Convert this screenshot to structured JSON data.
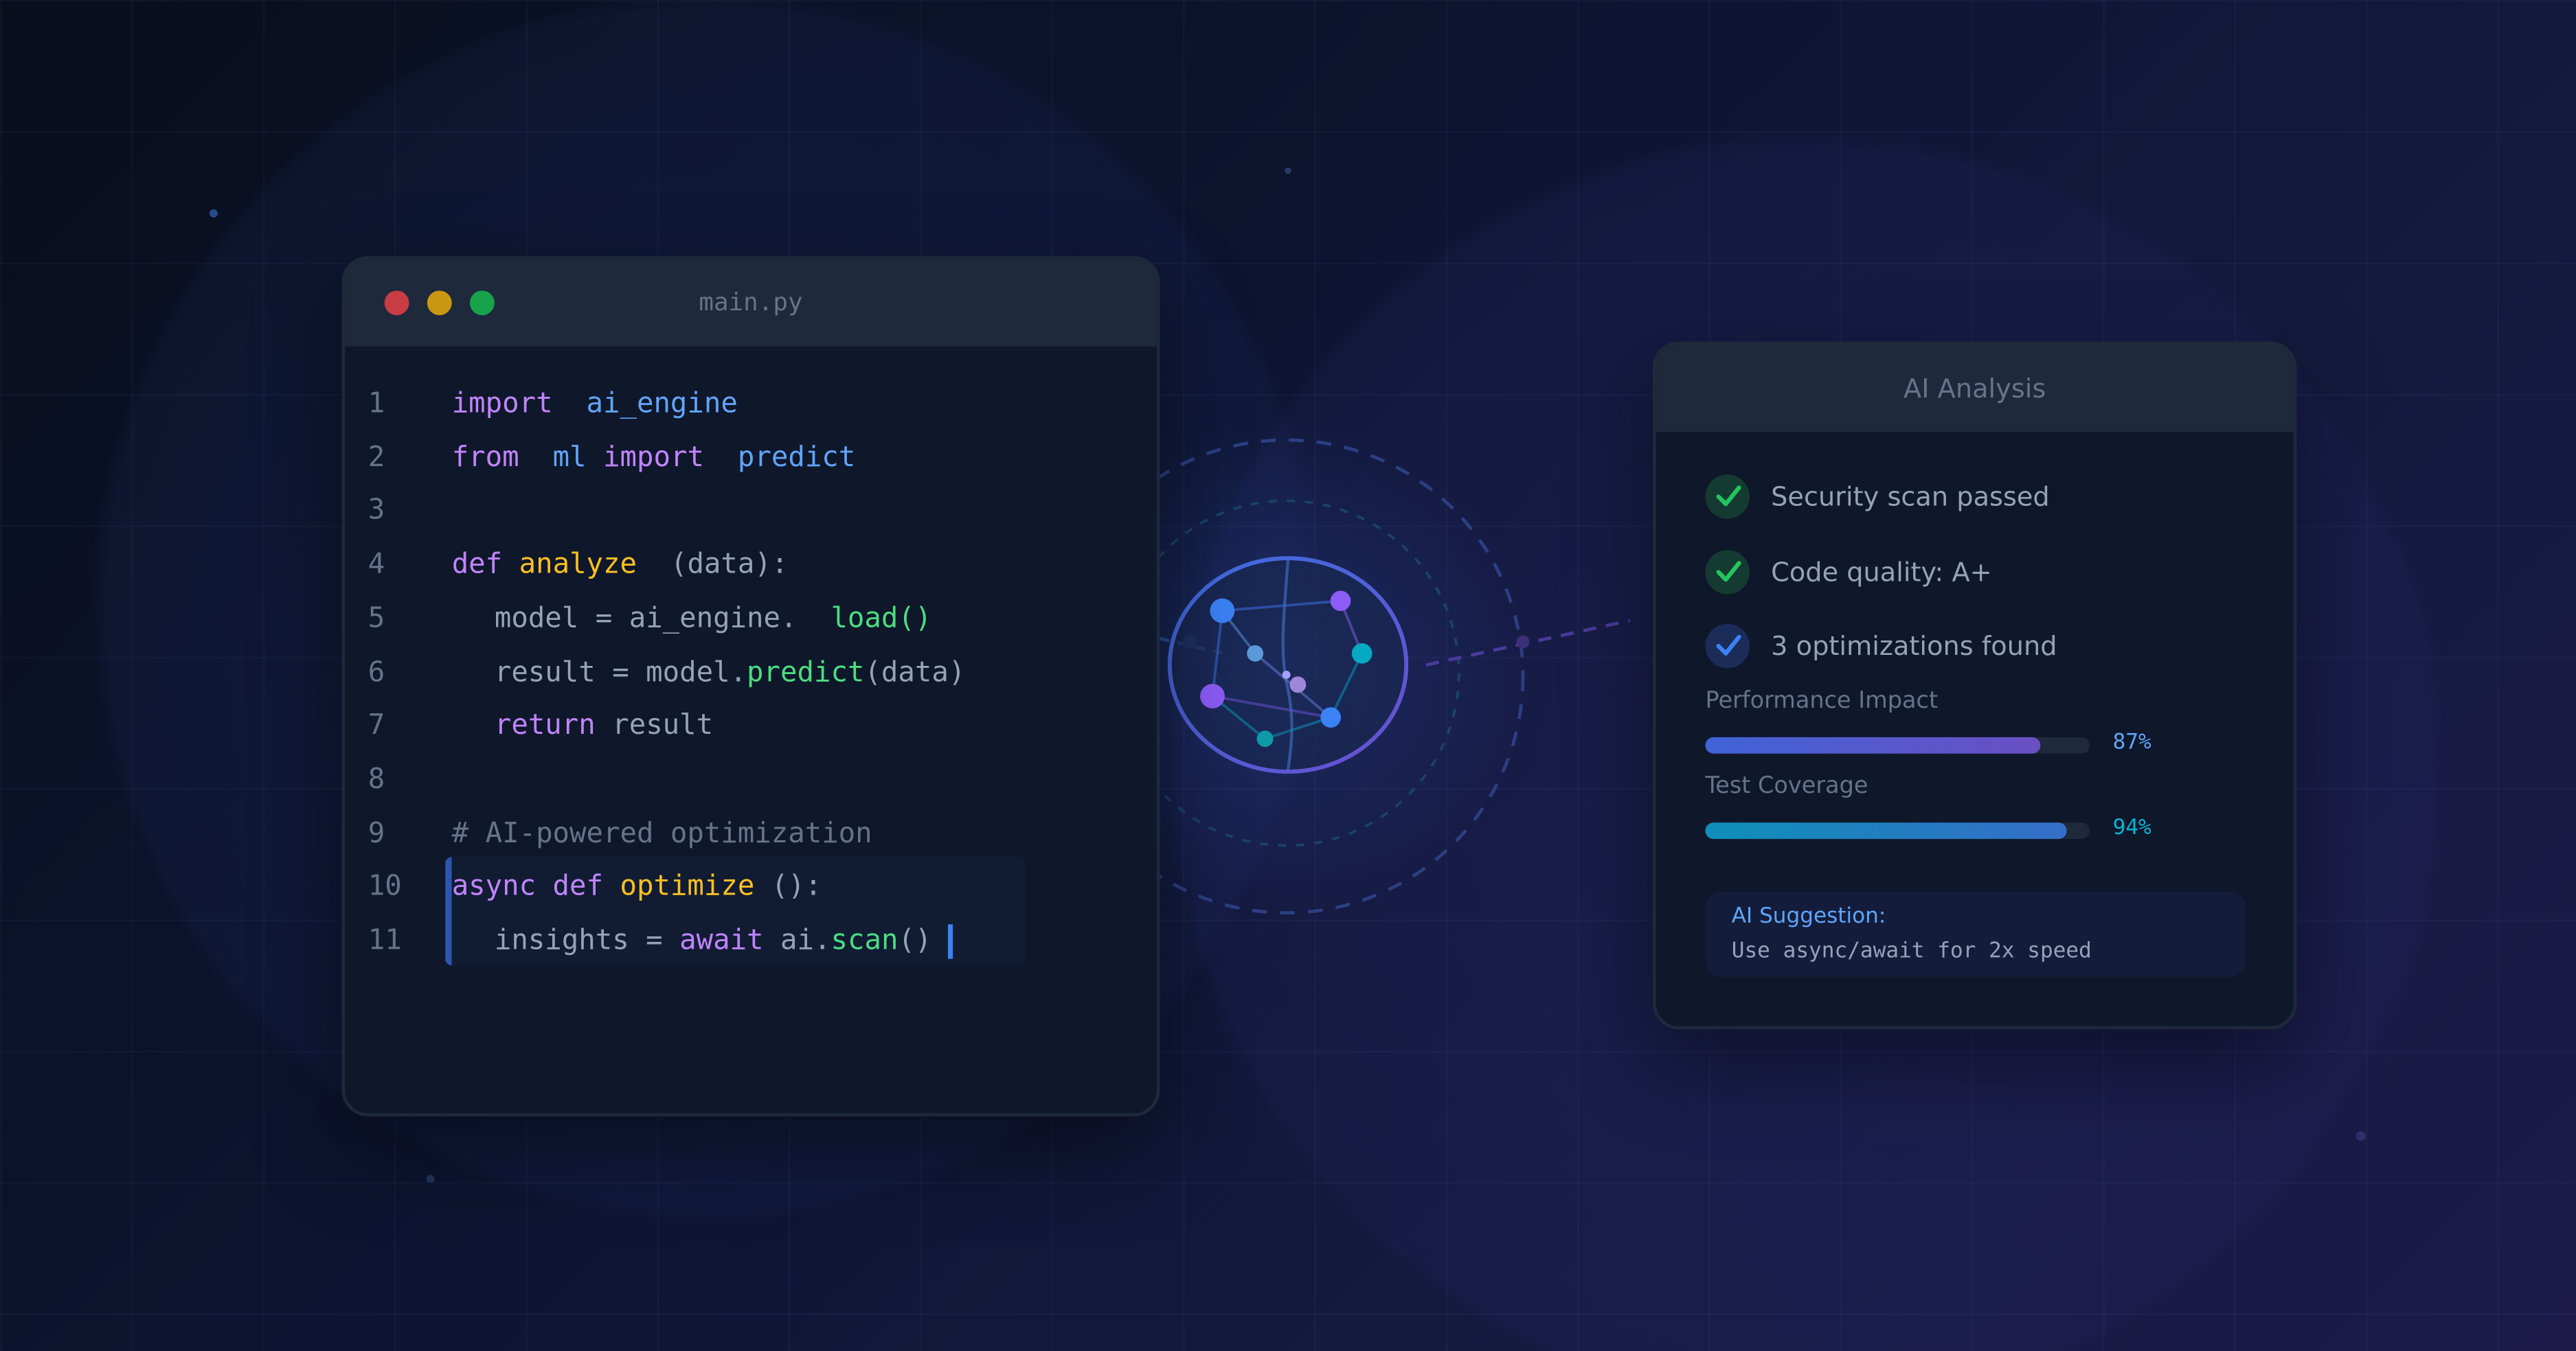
{
  "editor": {
    "title": "main.py",
    "window_buttons": [
      {
        "name": "close",
        "color": "#c93c44"
      },
      {
        "name": "minimize",
        "color": "#c99712"
      },
      {
        "name": "maximize",
        "color": "#18a34a"
      }
    ],
    "lines": [
      {
        "n": "1",
        "indent": false,
        "tokens": [
          [
            "import",
            "kw"
          ],
          [
            "  ai_engine",
            "mod"
          ]
        ]
      },
      {
        "n": "2",
        "indent": false,
        "tokens": [
          [
            "from",
            "kw"
          ],
          [
            "  ml ",
            "mod"
          ],
          [
            "import",
            "kw"
          ],
          [
            "  predict",
            "mod"
          ]
        ]
      },
      {
        "n": "3",
        "indent": false,
        "tokens": []
      },
      {
        "n": "4",
        "indent": false,
        "tokens": [
          [
            "def ",
            "kw"
          ],
          [
            "analyze",
            "fn"
          ],
          [
            "  (data):",
            "txt"
          ]
        ]
      },
      {
        "n": "5",
        "indent": true,
        "tokens": [
          [
            "model = ai_engine.  ",
            "txt"
          ],
          [
            "load()",
            "call"
          ]
        ]
      },
      {
        "n": "6",
        "indent": true,
        "tokens": [
          [
            "result = model.",
            "txt"
          ],
          [
            "predict",
            "call"
          ],
          [
            "(data)",
            "txt"
          ]
        ]
      },
      {
        "n": "7",
        "indent": true,
        "tokens": [
          [
            "return ",
            "kw"
          ],
          [
            "result",
            "txt"
          ]
        ]
      },
      {
        "n": "8",
        "indent": false,
        "tokens": []
      },
      {
        "n": "9",
        "indent": false,
        "tokens": [
          [
            "# AI-powered optimization",
            "cm"
          ]
        ]
      },
      {
        "n": "10",
        "indent": false,
        "tokens": [
          [
            "async def ",
            "kw"
          ],
          [
            "optimize",
            "fn"
          ],
          [
            " ():",
            "txt"
          ]
        ]
      },
      {
        "n": "11",
        "indent": true,
        "cursor": true,
        "tokens": [
          [
            "insights = ",
            "txt"
          ],
          [
            "await ",
            "kw"
          ],
          [
            "ai.",
            "txt"
          ],
          [
            "scan",
            "call"
          ],
          [
            "()",
            "txt"
          ]
        ]
      }
    ]
  },
  "analysis": {
    "title": "AI Analysis",
    "checks": [
      {
        "label": "Security scan passed",
        "icon": "check-icon",
        "color": "#22c55e",
        "bg": "#143a31"
      },
      {
        "label": "Code quality: A+",
        "icon": "check-icon",
        "color": "#22c55e",
        "bg": "#143a31"
      },
      {
        "label": "3 optimizations found",
        "icon": "check-icon",
        "color": "#3b82f6",
        "bg": "#1b2c58"
      }
    ],
    "metrics": [
      {
        "label": "Performance Impact",
        "value": 87,
        "text": "87%",
        "color": "#60a5fa",
        "gradient": [
          "#3f63d6",
          "#6a4fc4"
        ]
      },
      {
        "label": "Test Coverage",
        "value": 94,
        "text": "94%",
        "color": "#06b6d4",
        "gradient": [
          "#0e8fb8",
          "#356ec8"
        ]
      }
    ],
    "suggestion": {
      "title": "AI Suggestion:",
      "body": "Use async/await for 2x speed"
    }
  },
  "orb": {
    "icon": "neural-network-icon"
  }
}
